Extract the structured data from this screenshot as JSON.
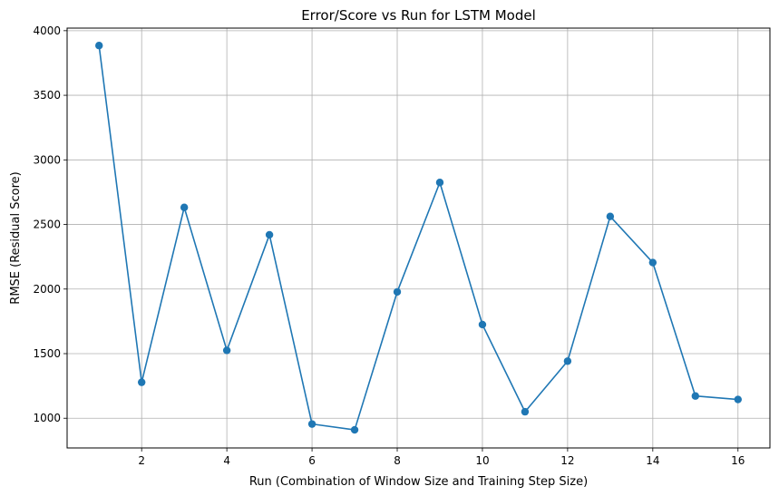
{
  "chart_data": {
    "type": "line",
    "title": "Error/Score vs Run for LSTM Model",
    "xlabel": "Run (Combination of Window Size and Training Step Size)",
    "ylabel": "RMSE (Residual Score)",
    "xlim": [
      0.25,
      16.75
    ],
    "ylim": [
      770,
      4020
    ],
    "x_ticks": [
      2,
      4,
      6,
      8,
      10,
      12,
      14,
      16
    ],
    "y_ticks": [
      1000,
      1500,
      2000,
      2500,
      3000,
      3500,
      4000
    ],
    "grid": true,
    "marker": "circle",
    "series": [
      {
        "color": "#1f77b4",
        "x": [
          1,
          2,
          3,
          4,
          5,
          6,
          7,
          8,
          9,
          10,
          11,
          12,
          13,
          14,
          15,
          16
        ],
        "values": [
          3885,
          1278,
          2632,
          1525,
          2420,
          955,
          910,
          1978,
          2825,
          1725,
          1050,
          1442,
          2562,
          2205,
          1172,
          1145
        ]
      }
    ]
  }
}
